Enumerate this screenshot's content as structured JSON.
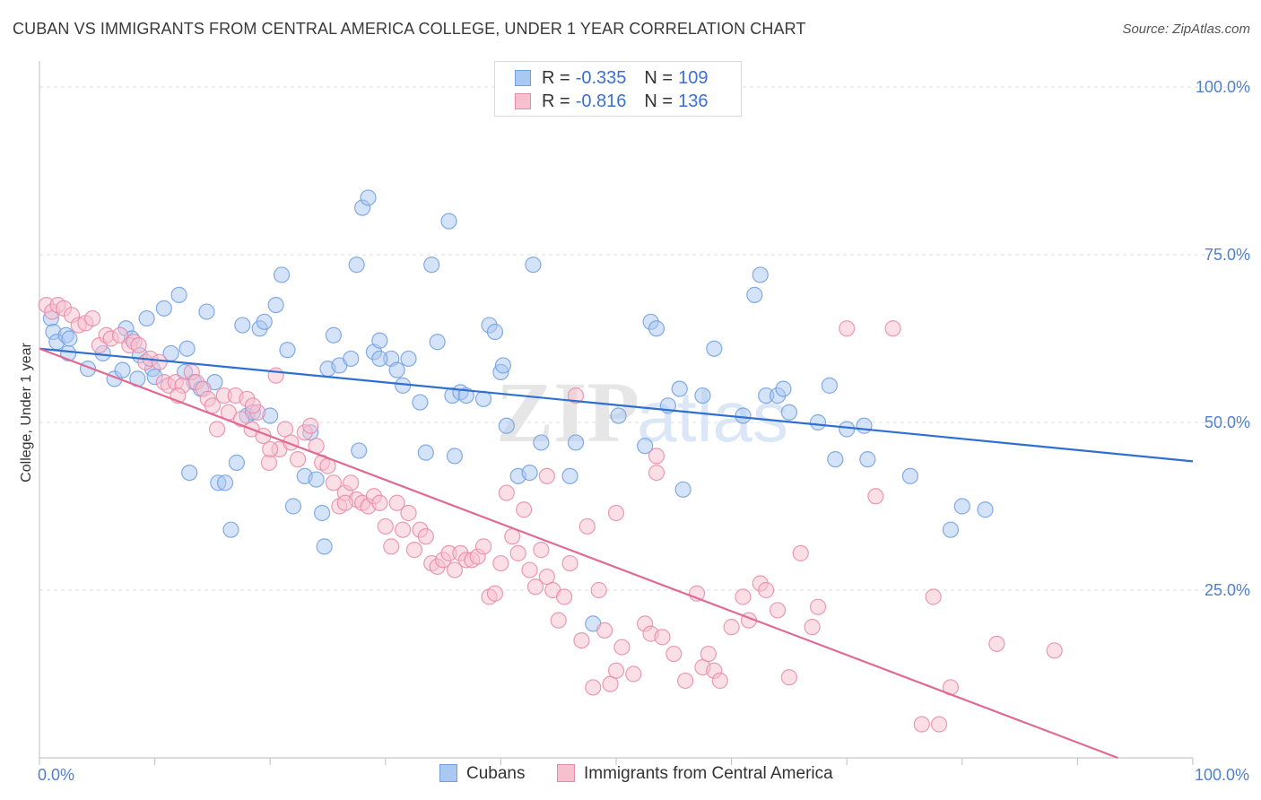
{
  "title": "CUBAN VS IMMIGRANTS FROM CENTRAL AMERICA COLLEGE, UNDER 1 YEAR CORRELATION CHART",
  "source": "Source: ZipAtlas.com",
  "watermark": "ZIPatlas",
  "stats": [
    {
      "r_label": "R =",
      "r_value": "-0.335",
      "n_label": "N =",
      "n_value": "109",
      "color": "#a9c8f2",
      "border": "#6f9fe0"
    },
    {
      "r_label": "R =",
      "r_value": "-0.816",
      "n_label": "N =",
      "n_value": "136",
      "color": "#f7c0cf",
      "border": "#e88aa6"
    }
  ],
  "chart_data": {
    "type": "scatter",
    "xlabel": "",
    "ylabel": "College, Under 1 year",
    "xlim": [
      0,
      100
    ],
    "ylim": [
      0,
      100
    ],
    "x_tick_labels": {
      "left": "0.0%",
      "right": "100.0%"
    },
    "y_ticks": [
      {
        "value": 100,
        "label": "100.0%"
      },
      {
        "value": 75,
        "label": "75.0%"
      },
      {
        "value": 50,
        "label": "50.0%"
      },
      {
        "value": 25,
        "label": "25.0%"
      }
    ],
    "grid": "horizontal-dashed",
    "legend_position": "bottom-center",
    "series": [
      {
        "name": "Cubans",
        "color": "#6f9fe0",
        "fill": "#a9c8f2",
        "trend": {
          "x": [
            0,
            100
          ],
          "y": [
            61.0,
            44.2
          ],
          "color": "#2f6fd0"
        },
        "points": [
          [
            1.0,
            65.5
          ],
          [
            1.2,
            63.5
          ],
          [
            1.5,
            62.0
          ],
          [
            2.3,
            63.0
          ],
          [
            2.5,
            60.3
          ],
          [
            2.6,
            62.5
          ],
          [
            4.2,
            58.0
          ],
          [
            5.5,
            60.3
          ],
          [
            6.5,
            56.5
          ],
          [
            7.2,
            57.8
          ],
          [
            7.5,
            64.0
          ],
          [
            8.0,
            62.5
          ],
          [
            8.5,
            56.5
          ],
          [
            8.7,
            60.0
          ],
          [
            9.3,
            65.5
          ],
          [
            9.8,
            58.0
          ],
          [
            10.0,
            56.8
          ],
          [
            10.8,
            67.0
          ],
          [
            11.4,
            60.3
          ],
          [
            12.1,
            69.0
          ],
          [
            12.6,
            57.5
          ],
          [
            12.8,
            61.0
          ],
          [
            13.0,
            42.5
          ],
          [
            13.4,
            56.0
          ],
          [
            14.0,
            55.0
          ],
          [
            14.5,
            66.5
          ],
          [
            15.2,
            56.0
          ],
          [
            15.5,
            41.0
          ],
          [
            16.1,
            41.0
          ],
          [
            16.6,
            34.0
          ],
          [
            17.1,
            44.0
          ],
          [
            17.6,
            64.5
          ],
          [
            18.0,
            51.0
          ],
          [
            18.5,
            51.5
          ],
          [
            19.1,
            64.0
          ],
          [
            19.5,
            65.0
          ],
          [
            20.0,
            51.0
          ],
          [
            20.5,
            67.5
          ],
          [
            21.0,
            72.0
          ],
          [
            21.5,
            60.8
          ],
          [
            22.0,
            37.5
          ],
          [
            23.0,
            42.0
          ],
          [
            23.5,
            48.5
          ],
          [
            24.0,
            41.5
          ],
          [
            24.5,
            36.5
          ],
          [
            24.7,
            31.5
          ],
          [
            25.0,
            58.0
          ],
          [
            25.5,
            63.0
          ],
          [
            26.0,
            58.5
          ],
          [
            27.0,
            59.5
          ],
          [
            27.5,
            73.5
          ],
          [
            28.0,
            82.0
          ],
          [
            28.5,
            83.5
          ],
          [
            27.7,
            45.8
          ],
          [
            29.0,
            60.5
          ],
          [
            29.5,
            62.2
          ],
          [
            30.5,
            59.5
          ],
          [
            31.0,
            57.8
          ],
          [
            31.5,
            55.5
          ],
          [
            32.0,
            59.5
          ],
          [
            33.0,
            53.0
          ],
          [
            33.5,
            45.5
          ],
          [
            34.0,
            73.5
          ],
          [
            34.5,
            62.0
          ],
          [
            35.5,
            80.0
          ],
          [
            35.8,
            54.0
          ],
          [
            36.5,
            54.5
          ],
          [
            37.0,
            54.0
          ],
          [
            38.5,
            53.5
          ],
          [
            39.0,
            64.5
          ],
          [
            39.5,
            63.5
          ],
          [
            40.0,
            57.5
          ],
          [
            40.2,
            58.5
          ],
          [
            40.5,
            49.5
          ],
          [
            41.5,
            42.0
          ],
          [
            42.5,
            42.5
          ],
          [
            42.8,
            73.5
          ],
          [
            43.5,
            47.0
          ],
          [
            46.0,
            42.0
          ],
          [
            48.0,
            20.0
          ],
          [
            52.5,
            46.5
          ],
          [
            53.0,
            65.0
          ],
          [
            53.5,
            64.0
          ],
          [
            54.5,
            52.5
          ],
          [
            55.5,
            55.0
          ],
          [
            55.8,
            40.0
          ],
          [
            57.5,
            54.0
          ],
          [
            58.5,
            61.0
          ],
          [
            61.0,
            51.0
          ],
          [
            62.0,
            69.0
          ],
          [
            62.5,
            72.0
          ],
          [
            63.0,
            54.0
          ],
          [
            64.0,
            54.0
          ],
          [
            64.5,
            55.0
          ],
          [
            65.0,
            51.5
          ],
          [
            67.5,
            50.0
          ],
          [
            68.5,
            55.5
          ],
          [
            69.0,
            44.5
          ],
          [
            70.0,
            49.0
          ],
          [
            71.5,
            49.5
          ],
          [
            71.8,
            44.5
          ],
          [
            75.5,
            42.0
          ],
          [
            79.0,
            34.0
          ],
          [
            80.0,
            37.5
          ],
          [
            82.0,
            37.0
          ],
          [
            50.2,
            51.0
          ],
          [
            46.5,
            47.0
          ],
          [
            36.0,
            45.0
          ],
          [
            29.5,
            59.5
          ]
        ]
      },
      {
        "name": "Immigrants from Central America",
        "color": "#e88aa6",
        "fill": "#f7c0cf",
        "trend": {
          "x": [
            0,
            93.5
          ],
          "y": [
            61.0,
            0.0
          ],
          "color": "#e06a94"
        },
        "points": [
          [
            0.6,
            67.5
          ],
          [
            1.1,
            66.5
          ],
          [
            1.6,
            67.5
          ],
          [
            2.1,
            67.0
          ],
          [
            2.8,
            66.0
          ],
          [
            3.4,
            64.5
          ],
          [
            4.0,
            64.8
          ],
          [
            4.6,
            65.5
          ],
          [
            5.2,
            61.5
          ],
          [
            5.8,
            63.0
          ],
          [
            6.2,
            62.5
          ],
          [
            7.0,
            63.0
          ],
          [
            7.8,
            61.5
          ],
          [
            8.2,
            62.0
          ],
          [
            8.6,
            61.5
          ],
          [
            9.2,
            59.0
          ],
          [
            9.6,
            59.5
          ],
          [
            10.4,
            59.0
          ],
          [
            10.8,
            56.0
          ],
          [
            11.2,
            55.5
          ],
          [
            11.8,
            56.0
          ],
          [
            12.4,
            55.5
          ],
          [
            13.2,
            57.5
          ],
          [
            13.6,
            56.0
          ],
          [
            14.2,
            55.0
          ],
          [
            14.6,
            53.5
          ],
          [
            15.0,
            52.5
          ],
          [
            15.4,
            49.0
          ],
          [
            16.0,
            54.0
          ],
          [
            16.4,
            51.5
          ],
          [
            17.0,
            54.0
          ],
          [
            17.5,
            50.5
          ],
          [
            18.0,
            53.5
          ],
          [
            18.4,
            49.0
          ],
          [
            18.9,
            51.5
          ],
          [
            19.4,
            48.0
          ],
          [
            19.9,
            44.0
          ],
          [
            20.5,
            57.0
          ],
          [
            20.8,
            46.0
          ],
          [
            21.3,
            49.0
          ],
          [
            21.8,
            47.0
          ],
          [
            22.4,
            44.5
          ],
          [
            23.0,
            48.5
          ],
          [
            23.5,
            49.5
          ],
          [
            24.0,
            46.5
          ],
          [
            24.5,
            44.0
          ],
          [
            25.0,
            43.5
          ],
          [
            25.5,
            41.0
          ],
          [
            26.0,
            37.5
          ],
          [
            26.5,
            39.5
          ],
          [
            27.0,
            41.0
          ],
          [
            27.5,
            38.5
          ],
          [
            28.0,
            38.0
          ],
          [
            28.5,
            37.5
          ],
          [
            29.0,
            39.0
          ],
          [
            29.5,
            38.0
          ],
          [
            30.0,
            34.5
          ],
          [
            30.5,
            31.5
          ],
          [
            31.0,
            38.0
          ],
          [
            31.5,
            34.0
          ],
          [
            32.0,
            36.5
          ],
          [
            32.5,
            31.0
          ],
          [
            33.0,
            34.0
          ],
          [
            33.5,
            33.0
          ],
          [
            34.0,
            29.0
          ],
          [
            34.5,
            28.5
          ],
          [
            35.0,
            29.5
          ],
          [
            35.5,
            30.5
          ],
          [
            36.0,
            28.0
          ],
          [
            36.5,
            30.5
          ],
          [
            37.0,
            29.5
          ],
          [
            37.5,
            29.5
          ],
          [
            38.0,
            30.0
          ],
          [
            38.5,
            31.5
          ],
          [
            39.0,
            24.0
          ],
          [
            39.5,
            24.5
          ],
          [
            40.0,
            29.0
          ],
          [
            40.5,
            39.5
          ],
          [
            41.0,
            33.0
          ],
          [
            41.5,
            30.5
          ],
          [
            42.0,
            37.0
          ],
          [
            42.5,
            28.0
          ],
          [
            43.0,
            25.5
          ],
          [
            43.5,
            31.0
          ],
          [
            44.0,
            27.0
          ],
          [
            44.5,
            25.0
          ],
          [
            45.0,
            20.5
          ],
          [
            45.5,
            24.0
          ],
          [
            46.0,
            29.0
          ],
          [
            46.5,
            54.0
          ],
          [
            47.0,
            17.5
          ],
          [
            47.5,
            34.5
          ],
          [
            48.0,
            10.5
          ],
          [
            48.5,
            25.0
          ],
          [
            49.0,
            19.0
          ],
          [
            49.5,
            11.0
          ],
          [
            50.0,
            13.0
          ],
          [
            50.5,
            16.5
          ],
          [
            51.5,
            12.5
          ],
          [
            52.5,
            20.0
          ],
          [
            53.0,
            18.5
          ],
          [
            53.5,
            45.0
          ],
          [
            54.0,
            18.0
          ],
          [
            55.0,
            15.5
          ],
          [
            56.0,
            11.5
          ],
          [
            57.0,
            24.5
          ],
          [
            57.5,
            13.5
          ],
          [
            58.0,
            15.5
          ],
          [
            58.5,
            13.0
          ],
          [
            59.0,
            11.5
          ],
          [
            60.0,
            19.5
          ],
          [
            61.0,
            24.0
          ],
          [
            61.5,
            20.5
          ],
          [
            62.5,
            26.0
          ],
          [
            63.0,
            25.0
          ],
          [
            64.0,
            22.0
          ],
          [
            65.0,
            12.0
          ],
          [
            66.0,
            30.5
          ],
          [
            67.0,
            19.5
          ],
          [
            67.5,
            22.5
          ],
          [
            70.0,
            64.0
          ],
          [
            74.0,
            64.0
          ],
          [
            72.5,
            39.0
          ],
          [
            77.5,
            24.0
          ],
          [
            78.0,
            5.0
          ],
          [
            79.0,
            10.5
          ],
          [
            83.0,
            17.0
          ],
          [
            88.0,
            16.0
          ],
          [
            76.5,
            5.0
          ],
          [
            53.5,
            42.5
          ],
          [
            50.0,
            36.5
          ],
          [
            44.0,
            42.0
          ],
          [
            26.5,
            38.0
          ],
          [
            20.0,
            46.0
          ],
          [
            18.5,
            52.5
          ],
          [
            12.0,
            54.0
          ]
        ]
      }
    ]
  }
}
